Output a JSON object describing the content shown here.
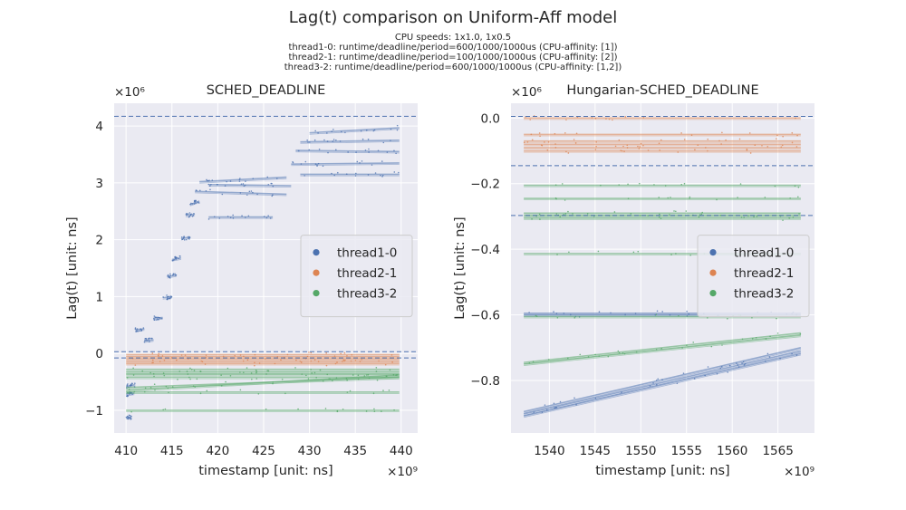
{
  "figure": {
    "title": "Lag(t) comparison on Uniform-Aff model",
    "subtitle_lines": [
      "CPU speeds: 1x1.0, 1x0.5",
      "thread1-0: runtime/deadline/period=600/1000/1000us (CPU-affinity: [1])",
      "thread2-1: runtime/deadline/period=100/1000/1000us (CPU-affinity: [2])",
      "thread3-2: runtime/deadline/period=600/1000/1000us (CPU-affinity: [1,2])"
    ]
  },
  "colors": {
    "thread1-0": "#4c72b0",
    "thread2-1": "#dd8452",
    "thread3-2": "#55a868",
    "panel_bg": "#eaeaf2",
    "grid": "#ffffff"
  },
  "chart_data": [
    {
      "type": "scatter",
      "title": "SCHED_DEADLINE",
      "xlabel": "timestamp [unit: ns]",
      "ylabel": "Lag(t) [unit: ns]",
      "x_offset_label": "×10⁹",
      "y_offset_label": "×10⁶",
      "xlim": [
        408.7,
        441.8
      ],
      "ylim": [
        -1.4,
        4.4
      ],
      "xticks": [
        410,
        415,
        420,
        425,
        430,
        435,
        440
      ],
      "yticks": [
        -1,
        0,
        1,
        2,
        3,
        4
      ],
      "grid": true,
      "legend": {
        "position": "center-right",
        "entries": [
          "thread1-0",
          "thread2-1",
          "thread3-2"
        ]
      },
      "hlines": [
        4.17,
        0.03,
        -0.08
      ],
      "series": [
        {
          "name": "thread1-0",
          "segments": [
            [
              410.0,
              -0.58,
              411.0,
              -0.55
            ],
            [
              410.0,
              -0.72,
              410.9,
              -0.7
            ],
            [
              410.0,
              -1.13,
              410.6,
              -1.12
            ],
            [
              411.0,
              0.42,
              412.0,
              0.43
            ],
            [
              412.0,
              0.22,
              413.0,
              0.24
            ],
            [
              413.0,
              0.62,
              414.0,
              0.63
            ],
            [
              414.0,
              0.98,
              415.0,
              1.0
            ],
            [
              414.5,
              1.35,
              415.5,
              1.38
            ],
            [
              415.0,
              1.65,
              416.0,
              1.68
            ],
            [
              416.0,
              2.02,
              417.0,
              2.05
            ],
            [
              416.5,
              2.43,
              417.5,
              2.45
            ],
            [
              417.0,
              2.62,
              418.0,
              2.68
            ],
            [
              417.5,
              2.85,
              427.5,
              2.8
            ],
            [
              418.0,
              3.02,
              427.5,
              3.1
            ],
            [
              419.0,
              2.97,
              428.0,
              2.95
            ],
            [
              419.0,
              2.4,
              426.0,
              2.4
            ],
            [
              428.0,
              3.33,
              439.8,
              3.35
            ],
            [
              428.5,
              3.57,
              439.8,
              3.55
            ],
            [
              429.0,
              3.15,
              439.8,
              3.15
            ],
            [
              429.0,
              3.72,
              439.8,
              3.75
            ],
            [
              430.0,
              3.88,
              439.8,
              3.97
            ]
          ]
        },
        {
          "name": "thread2-1",
          "segments": [
            [
              410.0,
              -0.02,
              439.8,
              -0.02
            ],
            [
              410.0,
              -0.06,
              439.8,
              -0.06
            ],
            [
              410.0,
              -0.1,
              439.8,
              -0.1
            ],
            [
              410.0,
              -0.14,
              439.8,
              -0.14
            ],
            [
              410.0,
              -0.18,
              439.8,
              -0.18
            ]
          ]
        },
        {
          "name": "thread3-2",
          "segments": [
            [
              410.0,
              -0.28,
              439.8,
              -0.28
            ],
            [
              410.0,
              -0.33,
              439.8,
              -0.33
            ],
            [
              410.0,
              -0.37,
              439.8,
              -0.37
            ],
            [
              410.0,
              -0.42,
              439.8,
              -0.42
            ],
            [
              410.0,
              -0.65,
              439.8,
              -0.38
            ],
            [
              410.0,
              -0.6,
              439.8,
              -0.42
            ],
            [
              410.0,
              -0.68,
              439.8,
              -0.68
            ],
            [
              410.0,
              -1.0,
              439.8,
              -1.0
            ]
          ]
        }
      ]
    },
    {
      "type": "scatter",
      "title": "Hungarian-SCHED_DEADLINE",
      "xlabel": "timestamp [unit: ns]",
      "ylabel": "Lag(t) [unit: ns]",
      "x_offset_label": "×10⁹",
      "y_offset_label": "×10⁶",
      "xlim": [
        1535.8,
        1569.0
      ],
      "ylim": [
        -0.96,
        0.045
      ],
      "xticks": [
        1540,
        1545,
        1550,
        1555,
        1560,
        1565
      ],
      "yticks": [
        0.0,
        -0.2,
        -0.4,
        -0.6,
        -0.8
      ],
      "grid": true,
      "legend": {
        "position": "center-right",
        "entries": [
          "thread1-0",
          "thread2-1",
          "thread3-2"
        ]
      },
      "hlines": [
        0.005,
        -0.145,
        -0.297
      ],
      "series": [
        {
          "name": "thread1-0",
          "segments": [
            [
              1537.2,
              -0.595,
              1567.5,
              -0.595
            ],
            [
              1537.2,
              -0.6,
              1567.5,
              -0.6
            ],
            [
              1537.2,
              -0.895,
              1567.5,
              -0.7
            ],
            [
              1537.2,
              -0.902,
              1567.5,
              -0.71
            ],
            [
              1537.2,
              -0.908,
              1567.5,
              -0.718
            ]
          ]
        },
        {
          "name": "thread2-1",
          "segments": [
            [
              1537.2,
              0.0,
              1567.5,
              0.0
            ],
            [
              1537.2,
              -0.05,
              1567.5,
              -0.05
            ],
            [
              1537.2,
              -0.07,
              1567.5,
              -0.07
            ],
            [
              1537.2,
              -0.08,
              1567.5,
              -0.08
            ],
            [
              1537.2,
              -0.09,
              1567.5,
              -0.09
            ],
            [
              1537.2,
              -0.1,
              1567.5,
              -0.1
            ]
          ]
        },
        {
          "name": "thread3-2",
          "segments": [
            [
              1537.2,
              -0.205,
              1567.5,
              -0.205
            ],
            [
              1537.2,
              -0.245,
              1567.5,
              -0.245
            ],
            [
              1537.2,
              -0.29,
              1567.5,
              -0.29
            ],
            [
              1537.2,
              -0.298,
              1567.5,
              -0.298
            ],
            [
              1537.2,
              -0.305,
              1567.5,
              -0.305
            ],
            [
              1537.2,
              -0.413,
              1567.5,
              -0.413
            ],
            [
              1537.2,
              -0.605,
              1567.5,
              -0.605
            ],
            [
              1537.2,
              -0.745,
              1567.5,
              -0.655
            ],
            [
              1537.2,
              -0.75,
              1567.5,
              -0.662
            ]
          ]
        }
      ]
    }
  ]
}
